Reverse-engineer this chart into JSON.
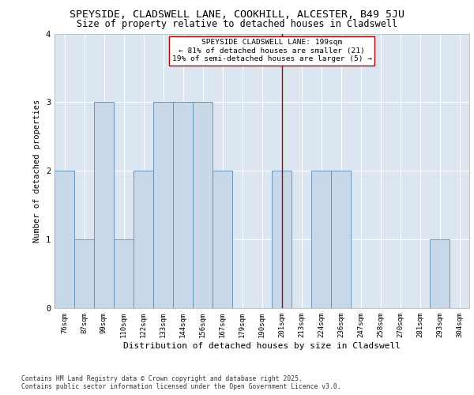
{
  "title1": "SPEYSIDE, CLADSWELL LANE, COOKHILL, ALCESTER, B49 5JU",
  "title2": "Size of property relative to detached houses in Cladswell",
  "xlabel": "Distribution of detached houses by size in Cladswell",
  "ylabel": "Number of detached properties",
  "categories": [
    "76sqm",
    "87sqm",
    "99sqm",
    "110sqm",
    "122sqm",
    "133sqm",
    "144sqm",
    "156sqm",
    "167sqm",
    "179sqm",
    "190sqm",
    "201sqm",
    "213sqm",
    "224sqm",
    "236sqm",
    "247sqm",
    "258sqm",
    "270sqm",
    "281sqm",
    "293sqm",
    "304sqm"
  ],
  "values": [
    2,
    1,
    3,
    1,
    2,
    3,
    3,
    3,
    2,
    0,
    0,
    2,
    0,
    2,
    2,
    0,
    0,
    0,
    0,
    1,
    0
  ],
  "bar_color": "#c8d8e8",
  "bar_edge_color": "#5b8db8",
  "highlight_index": 11,
  "highlight_line_color": "#aa0000",
  "ylim": [
    0,
    4
  ],
  "yticks": [
    0,
    1,
    2,
    3,
    4
  ],
  "annotation_title": "SPEYSIDE CLADSWELL LANE: 199sqm",
  "annotation_line1": "← 81% of detached houses are smaller (21)",
  "annotation_line2": "19% of semi-detached houses are larger (5) →",
  "annotation_box_color": "#aa0000",
  "background_color": "#dce6f0",
  "footer": "Contains HM Land Registry data © Crown copyright and database right 2025.\nContains public sector information licensed under the Open Government Licence v3.0.",
  "title1_fontsize": 9.5,
  "title2_fontsize": 8.5,
  "xlabel_fontsize": 8,
  "ylabel_fontsize": 7.5,
  "tick_fontsize": 6.5,
  "annotation_fontsize": 6.8,
  "footer_fontsize": 5.8
}
